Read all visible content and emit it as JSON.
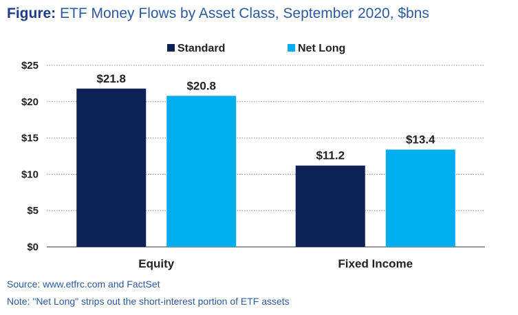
{
  "figure": {
    "title_prefix": "Figure:",
    "title_text": " ETF Money Flows by Asset Class, September 2020, $bns",
    "source": "Source: www.etfrc.com and FactSet",
    "note": "Note: \"Net Long\" strips out the short-interest portion of ETF assets"
  },
  "chart_data": {
    "type": "bar",
    "title": "ETF Money Flows by Asset Class, September 2020, $bns",
    "xlabel": "",
    "ylabel": "",
    "categories": [
      "Equity",
      "Fixed Income"
    ],
    "series": [
      {
        "name": "Standard",
        "values": [
          21.8,
          11.2
        ],
        "labels": [
          "$21.8",
          "$11.2"
        ],
        "color": "#0e2157"
      },
      {
        "name": "Net Long",
        "values": [
          20.8,
          13.4
        ],
        "labels": [
          "$20.8",
          "$13.4"
        ],
        "color": "#00aeef"
      }
    ],
    "ylim": [
      0,
      25
    ],
    "yticks": [
      0,
      5,
      10,
      15,
      20,
      25
    ],
    "ytick_labels": [
      "$0",
      "$5",
      "$10",
      "$15",
      "$20",
      "$25"
    ],
    "grid": true,
    "legend_position": "top-center"
  }
}
